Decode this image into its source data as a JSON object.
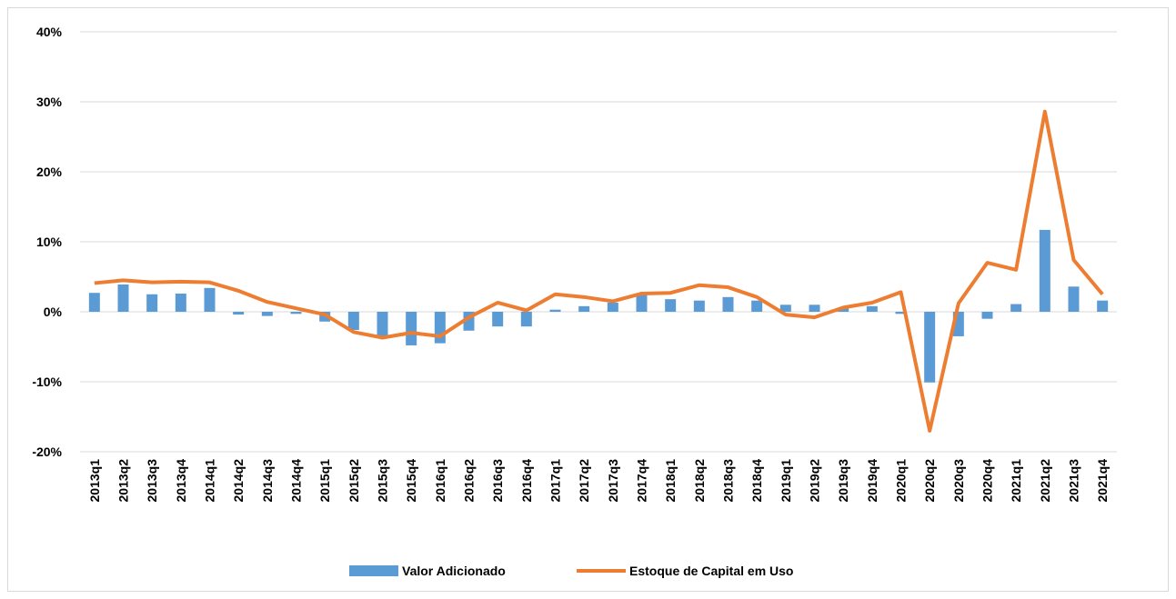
{
  "chart_data": {
    "type": "bar-line",
    "categories": [
      "2013q1",
      "2013q2",
      "2013q3",
      "2013q4",
      "2014q1",
      "2014q2",
      "2014q3",
      "2014q4",
      "2015q1",
      "2015q2",
      "2015q3",
      "2015q4",
      "2016q1",
      "2016q2",
      "2016q3",
      "2016q4",
      "2017q1",
      "2017q2",
      "2017q3",
      "2017q4",
      "2018q1",
      "2018q2",
      "2018q3",
      "2018q4",
      "2019q1",
      "2019q2",
      "2019q3",
      "2019q4",
      "2020q1",
      "2020q2",
      "2020q3",
      "2020q4",
      "2021q1",
      "2021q2",
      "2021q3",
      "2021q4"
    ],
    "series": [
      {
        "name": "Valor Adicionado",
        "type": "bar",
        "color": "#5b9bd5",
        "values": [
          2.7,
          3.9,
          2.5,
          2.6,
          3.4,
          -0.4,
          -0.6,
          -0.3,
          -1.4,
          -2.6,
          -3.6,
          -4.8,
          -4.5,
          -2.7,
          -2.1,
          -2.1,
          0.3,
          0.8,
          1.3,
          2.4,
          1.8,
          1.6,
          2.1,
          1.6,
          1.0,
          1.0,
          0.6,
          0.8,
          -0.3,
          -10.1,
          -3.5,
          -1.0,
          1.1,
          11.7,
          3.6,
          1.6
        ]
      },
      {
        "name": "Estoque de Capital em Uso",
        "type": "line",
        "color": "#ed7d31",
        "values": [
          4.1,
          4.5,
          4.2,
          4.3,
          4.2,
          3.0,
          1.4,
          0.5,
          -0.4,
          -2.9,
          -3.7,
          -3.0,
          -3.5,
          -0.8,
          1.3,
          0.2,
          2.5,
          2.1,
          1.5,
          2.6,
          2.7,
          3.8,
          3.5,
          2.1,
          -0.4,
          -0.8,
          0.6,
          1.3,
          2.8,
          -17.0,
          1.2,
          7.0,
          6.0,
          28.6,
          7.4,
          2.5
        ]
      }
    ],
    "ylim": [
      -20,
      40
    ],
    "yticks": [
      {
        "value": -20,
        "label": "-20%"
      },
      {
        "value": -10,
        "label": "-10%"
      },
      {
        "value": 0,
        "label": "0%"
      },
      {
        "value": 10,
        "label": "10%"
      },
      {
        "value": 20,
        "label": "20%"
      },
      {
        "value": 30,
        "label": "30%"
      },
      {
        "value": 40,
        "label": "40%"
      }
    ],
    "grid": true,
    "legend": "bottom"
  }
}
